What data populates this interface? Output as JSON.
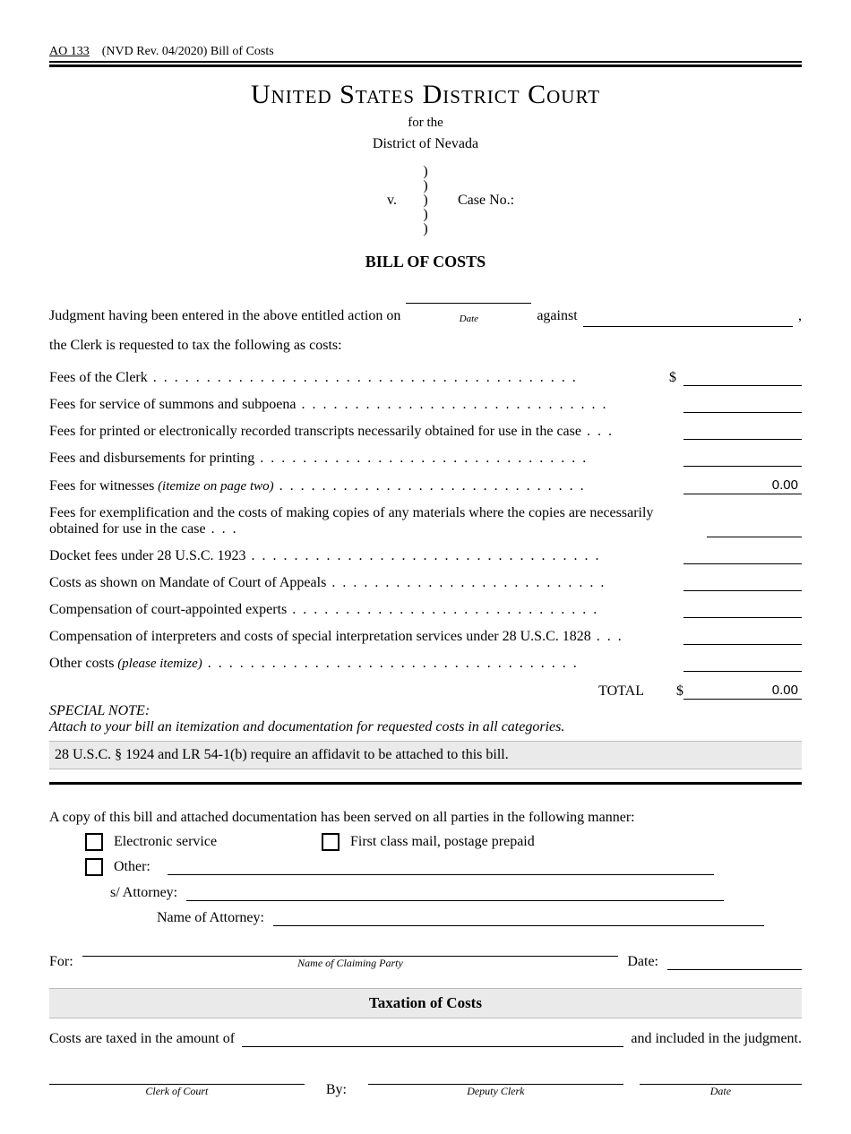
{
  "form": {
    "number": "AO 133",
    "revision": "(NVD Rev. 04/2020)  Bill of Costs"
  },
  "court": {
    "title": "United States District Court",
    "for_the": "for the",
    "district": "District of Nevada"
  },
  "caption": {
    "v": "v.",
    "case_no_label": "Case No.:",
    "case_no_value": ""
  },
  "section_title": "BILL OF COSTS",
  "intro": {
    "line1_a": "Judgment having been entered in the above entitled action on",
    "date_value": "",
    "date_label": "Date",
    "against": "against",
    "against_value": "",
    "comma": ",",
    "line2": "the Clerk is requested to tax the following as costs:"
  },
  "costs": [
    {
      "label": "Fees of the Clerk",
      "dollar": true,
      "value": ""
    },
    {
      "label": "Fees for service of summons and subpoena",
      "dollar": false,
      "value": ""
    },
    {
      "label": "Fees for printed or electronically recorded transcripts necessarily obtained for use in the case",
      "dollar": false,
      "value": ""
    },
    {
      "label": "Fees and disbursements for printing",
      "dollar": false,
      "value": ""
    },
    {
      "label": "Fees for witnesses",
      "suffix_italic": "(itemize on page two)",
      "dollar": false,
      "value": "0.00"
    },
    {
      "label": "Fees for exemplification and the costs of making copies of any materials where the copies are necessarily obtained for use in the case",
      "dollar": false,
      "value": "",
      "twoLine": true
    },
    {
      "label": "Docket fees under 28 U.S.C. 1923",
      "dollar": false,
      "value": ""
    },
    {
      "label": "Costs as shown on Mandate of Court of Appeals",
      "dollar": false,
      "value": ""
    },
    {
      "label": "Compensation of court-appointed experts",
      "dollar": false,
      "value": ""
    },
    {
      "label": "Compensation of interpreters and costs of special interpretation services under 28 U.S.C. 1828",
      "dollar": false,
      "value": ""
    },
    {
      "label": "Other costs",
      "suffix_italic": "(please itemize)",
      "dollar": false,
      "value": ""
    }
  ],
  "total": {
    "label": "TOTAL",
    "dollar": "$",
    "value": "0.00"
  },
  "special_note": {
    "title": "SPECIAL NOTE:",
    "body": "Attach to your bill an itemization and documentation for requested costs in all categories."
  },
  "affidavit_bar": "28 U.S.C. § 1924 and LR 54-1(b) require an affidavit to be attached to this bill.",
  "service": {
    "intro": "A copy of this bill and attached documentation has been served on all parties in the following manner:",
    "electronic": "Electronic service",
    "mail": "First class mail, postage prepaid",
    "other_label": "Other:",
    "other_value": "",
    "s_attorney_label": "s/ Attorney:",
    "s_attorney_value": "",
    "name_attorney_label": "Name of Attorney:",
    "name_attorney_value": "",
    "for_label": "For:",
    "for_value": "",
    "for_sublabel": "Name of Claiming Party",
    "date_label": "Date:",
    "date_value": ""
  },
  "taxation": {
    "title": "Taxation of Costs",
    "line_a": "Costs are taxed in the amount of",
    "amount": "",
    "line_b": "and included in the judgment.",
    "by": "By:",
    "clerk_label": "Clerk of Court",
    "deputy_label": "Deputy Clerk",
    "date_label": "Date"
  },
  "style": {
    "background": "#ffffff",
    "text_color": "#000000",
    "gray_bar": "#eaeaea",
    "font": "Times New Roman"
  }
}
